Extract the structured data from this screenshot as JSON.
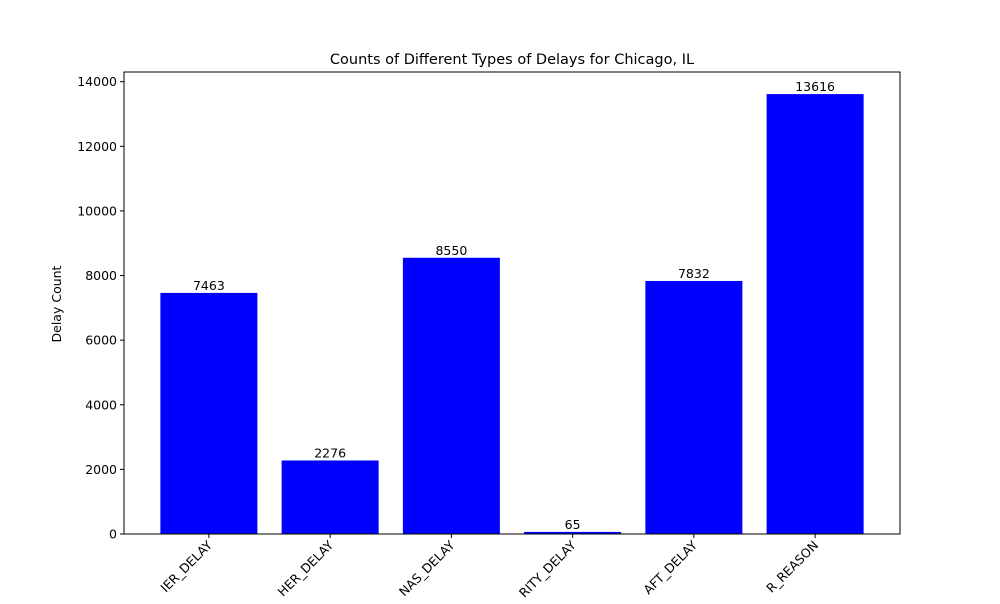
{
  "chart_data": {
    "type": "bar",
    "title": "Counts of Different Types of Delays for Chicago, IL",
    "xlabel": "",
    "ylabel": "Delay Count",
    "categories": [
      "CARRIER_DELAY",
      "WEATHER_DELAY",
      "NAS_DELAY",
      "SECURITY_DELAY",
      "LATE_AIRCRAFT_DELAY",
      "OTHER_REASON"
    ],
    "category_labels_visible": [
      "IER_DELAY",
      "HER_DELAY",
      "NAS_DELAY",
      "RITY_DELAY",
      "AFT_DELAY",
      "R_REASON"
    ],
    "values": [
      7463,
      2276,
      8550,
      65,
      7832,
      13616
    ],
    "data_labels": [
      "7463",
      "2276",
      "8550",
      "65",
      "7832",
      "13616"
    ],
    "ylim": [
      0,
      14300
    ],
    "yticks": [
      0,
      2000,
      4000,
      6000,
      8000,
      10000,
      12000,
      14000
    ],
    "ytick_labels": [
      "0",
      "2000",
      "4000",
      "6000",
      "8000",
      "10000",
      "12000",
      "14000"
    ],
    "bar_color": "#0000ff",
    "grid": false,
    "legend": "none",
    "xtick_rotation_deg": 45
  }
}
